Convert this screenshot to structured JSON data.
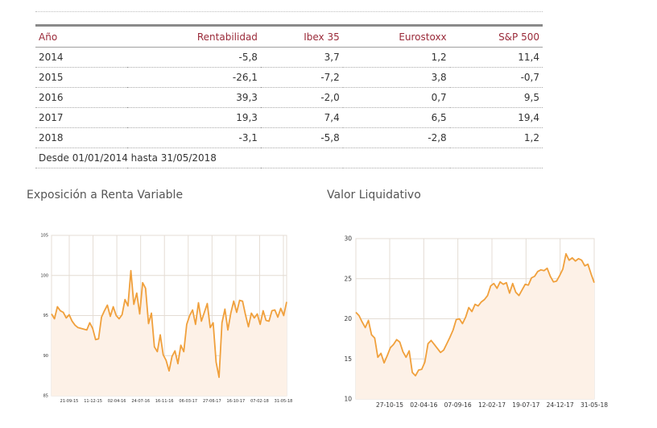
{
  "table": {
    "headers": [
      "Año",
      "Rentabilidad",
      "Ibex 35",
      "Eurostoxx",
      "S&P 500"
    ],
    "rows": [
      [
        "2014",
        "-5,8",
        "3,7",
        "1,2",
        "11,4"
      ],
      [
        "2015",
        "-26,1",
        "-7,2",
        "3,8",
        "-0,7"
      ],
      [
        "2016",
        "39,3",
        "-2,0",
        "0,7",
        "9,5"
      ],
      [
        "2017",
        "19,3",
        "7,4",
        "6,5",
        "19,4"
      ],
      [
        "2018",
        "-3,1",
        "-5,8",
        "-2,8",
        "1,2"
      ]
    ],
    "footnote": "Desde 01/01/2014 hasta 31/05/2018"
  },
  "colors": {
    "header_text": "#9a2a39",
    "line": "#f0a03c",
    "fill": "#fdf1e7",
    "grid": "#e4dcd4"
  },
  "chart_data": [
    {
      "type": "area",
      "title": "Exposición a Renta Variable",
      "ylim": [
        85,
        105
      ],
      "yticks": [
        85,
        90,
        95,
        100,
        105
      ],
      "xticks": [
        "21-09-15",
        "11-12-15",
        "02-04-16",
        "24-07-16",
        "16-11-16",
        "06-03-17",
        "27-06-17",
        "16-10-17",
        "07-02-18",
        "31-05-18"
      ],
      "grid": true,
      "values": [
        95.2,
        94.6,
        96.1,
        95.6,
        95.4,
        94.7,
        95.1,
        94.3,
        93.8,
        93.5,
        93.4,
        93.3,
        93.2,
        94.1,
        93.4,
        92.0,
        92.1,
        94.8,
        95.6,
        96.3,
        94.9,
        96.1,
        95.0,
        94.6,
        95.1,
        97.0,
        96.2,
        100.6,
        96.4,
        97.8,
        95.2,
        99.1,
        98.4,
        94.0,
        95.3,
        91.1,
        90.5,
        92.6,
        90.1,
        89.4,
        88.1,
        89.9,
        90.6,
        89.0,
        91.3,
        90.5,
        93.9,
        95.0,
        95.7,
        93.9,
        96.6,
        94.3,
        95.4,
        96.5,
        93.5,
        94.1,
        89.2,
        87.3,
        94.1,
        95.8,
        93.2,
        95.3,
        96.8,
        95.4,
        96.9,
        96.8,
        95.1,
        93.6,
        95.3,
        94.7,
        95.2,
        93.9,
        95.6,
        94.4,
        94.3,
        95.6,
        95.7,
        94.8,
        95.9,
        95.0,
        96.7
      ]
    },
    {
      "type": "area",
      "title": "Valor Liquidativo",
      "ylim": [
        10,
        30
      ],
      "yticks": [
        10,
        15,
        20,
        25,
        30
      ],
      "xticks": [
        "27-10-15",
        "02-04-16",
        "07-09-16",
        "12-02-17",
        "19-07-17",
        "24-12-17",
        "31-05-18"
      ],
      "grid": true,
      "values": [
        20.8,
        20.4,
        19.6,
        18.9,
        19.8,
        18.0,
        17.6,
        15.2,
        15.7,
        14.5,
        15.4,
        16.4,
        16.8,
        17.4,
        17.1,
        15.9,
        15.2,
        16.0,
        13.3,
        12.9,
        13.6,
        13.7,
        14.6,
        16.9,
        17.3,
        16.8,
        16.3,
        15.8,
        16.1,
        16.9,
        17.7,
        18.6,
        19.9,
        20.0,
        19.4,
        20.2,
        21.4,
        20.9,
        21.8,
        21.6,
        22.1,
        22.4,
        22.9,
        24.1,
        24.4,
        23.8,
        24.6,
        24.3,
        24.5,
        23.2,
        24.4,
        23.3,
        22.9,
        23.6,
        24.3,
        24.2,
        25.1,
        25.3,
        25.9,
        26.1,
        26.0,
        26.3,
        25.3,
        24.6,
        24.7,
        25.4,
        26.2,
        28.1,
        27.3,
        27.6,
        27.2,
        27.5,
        27.3,
        26.6,
        26.8,
        25.6,
        24.5
      ]
    }
  ]
}
